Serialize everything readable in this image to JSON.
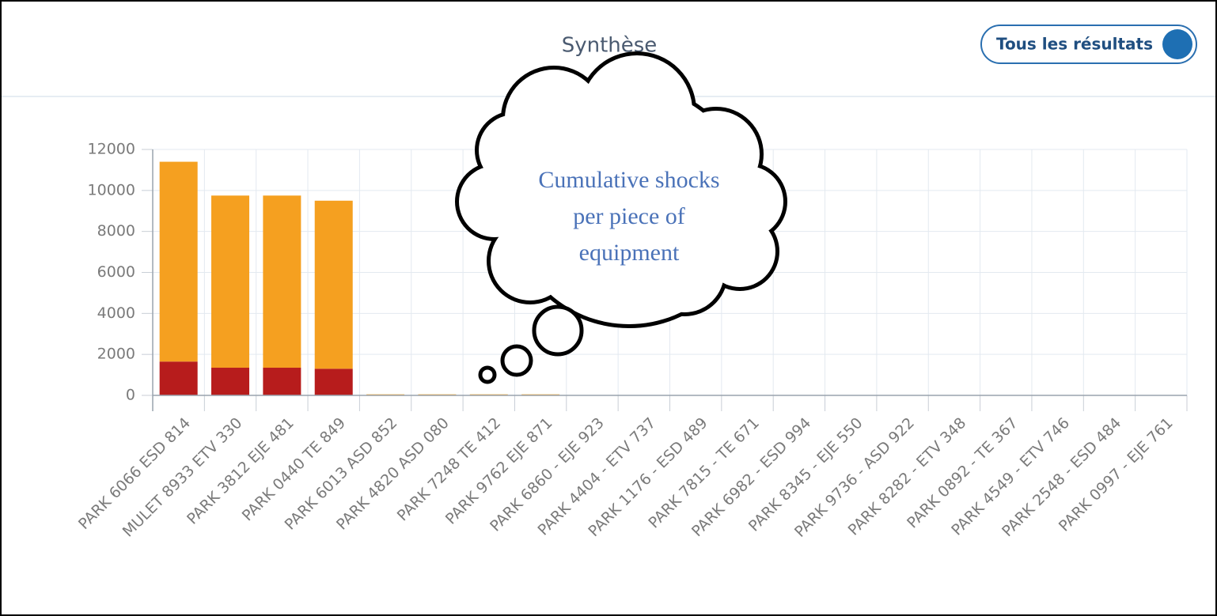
{
  "chart_data": {
    "type": "stacked_bar",
    "title": "Synthèse",
    "toggle": "Tous les résultats",
    "annotation": [
      "Cumulative shocks",
      "per piece of",
      "equipment"
    ],
    "categories": [
      "PARK 6066 ESD 814",
      "MULET 8933 ETV 330",
      "PARK 3812 EJE 481",
      "PARK 0440 TE 849",
      "PARK 6013 ASD 852",
      "PARK 4820 ASD 080",
      "PARK 7248 TE 412",
      "PARK 9762 EJE 871",
      "PARK 6860 - EJE 923",
      "PARK 4404 - ETV 737",
      "PARK 1176 - ESD 489",
      "PARK 7815 - TE 671",
      "PARK 6982 - ESD 994",
      "PARK 8345 - EJE 550",
      "PARK 9736 - ASD 922",
      "PARK 8282 - ETV 348",
      "PARK 0892 - TE 367",
      "PARK 4549 - ETV 746",
      "PARK 2548 - ESD 484",
      "PARK 0997 - EJE 761"
    ],
    "series": [
      {
        "color": "#b71c1c",
        "values": [
          1650,
          1350,
          1350,
          1300,
          20,
          20,
          20,
          20,
          0,
          0,
          0,
          0,
          0,
          0,
          0,
          0,
          0,
          0,
          0,
          0
        ]
      },
      {
        "color": "#f5a020",
        "values": [
          9750,
          8400,
          8400,
          8200,
          30,
          30,
          30,
          30,
          0,
          0,
          0,
          0,
          0,
          0,
          0,
          0,
          0,
          0,
          0,
          0
        ]
      }
    ],
    "ylim": [
      0,
      12000
    ],
    "yticks": [
      0,
      2000,
      4000,
      6000,
      8000,
      10000,
      12000
    ],
    "grid": true
  }
}
